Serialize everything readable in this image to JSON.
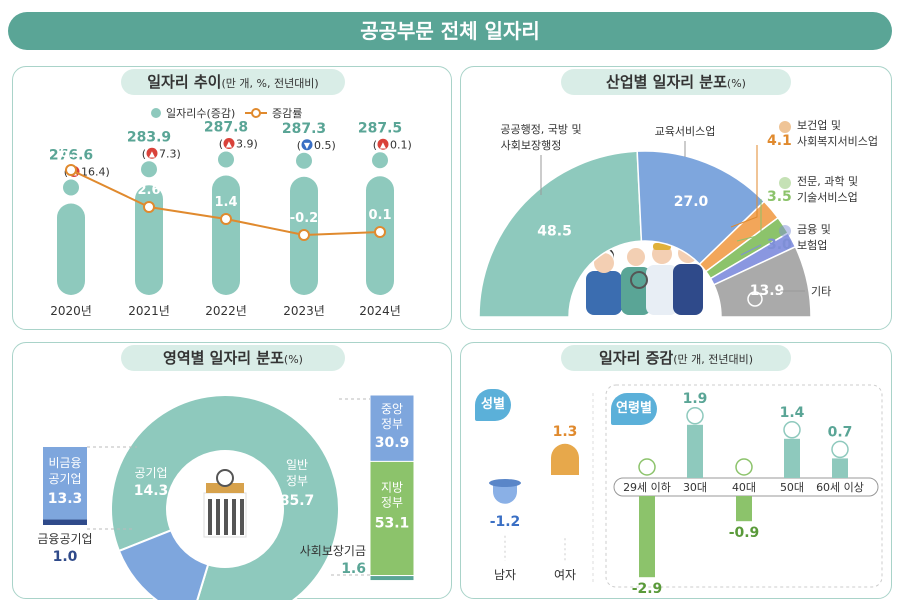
{
  "page_title": "공공부문 전체 일자리",
  "colors": {
    "teal": "#8ec9bd",
    "teal_dark": "#5aa596",
    "orange": "#e08a2e",
    "blue": "#7ea6dd",
    "green": "#8cc36b",
    "gray": "#aaaaaa",
    "navy": "#2f4a8a"
  },
  "panels": {
    "trend": {
      "title": "일자리 추이",
      "subtitle": "(만 개, %, 전년대비)",
      "legend_jobs": "일자리수(증감)",
      "legend_rate": "증감률"
    },
    "industry": {
      "title": "산업별 일자리 분포",
      "subtitle": "(%)"
    },
    "domain": {
      "title": "영역별 일자리 분포",
      "subtitle": "(%)"
    },
    "change": {
      "title": "일자리 증감",
      "subtitle": "(만 개, 전년대비)",
      "gender_label": "성별",
      "age_label": "연령별"
    }
  },
  "chart_data": [
    {
      "type": "line",
      "categories": [
        "2020년",
        "2021년",
        "2022년",
        "2023년",
        "2024년"
      ],
      "series": [
        {
          "name": "일자리수(증감)",
          "values": [
            276.6,
            283.9,
            287.8,
            287.3,
            287.5
          ],
          "change": [
            16.4,
            7.3,
            3.9,
            0.5,
            0.1
          ],
          "change_dir": [
            "up",
            "up",
            "up",
            "down",
            "up"
          ]
        },
        {
          "name": "증감률",
          "values": [
            6.3,
            2.6,
            1.4,
            -0.2,
            0.1
          ]
        }
      ]
    },
    {
      "type": "pie",
      "categories": [
        "공공행정, 국방 및 사회보장행정",
        "교육서비스업",
        "보건업 및 사회복지서비스업",
        "전문, 과학 및 기술서비스업",
        "금융 및 보험업",
        "기타"
      ],
      "values": [
        48.5,
        27.0,
        4.1,
        3.5,
        3.0,
        13.9
      ]
    },
    {
      "type": "pie",
      "categories": [
        "일반정부",
        "공기업"
      ],
      "values": [
        85.7,
        14.3
      ],
      "breakdown": {
        "government": {
          "categories": [
            "중앙정부",
            "지방정부",
            "사회보장기금"
          ],
          "values": [
            30.9,
            53.1,
            1.6
          ]
        },
        "enterprise": {
          "categories": [
            "비금융공기업",
            "금융공기업"
          ],
          "values": [
            13.3,
            1.0
          ]
        }
      }
    },
    {
      "type": "bar",
      "categories": [
        "남자",
        "여자"
      ],
      "values": [
        -1.2,
        1.3
      ]
    },
    {
      "type": "bar",
      "categories": [
        "29세 이하",
        "30대",
        "40대",
        "50대",
        "60세 이상"
      ],
      "values": [
        -2.9,
        1.9,
        -0.9,
        1.4,
        0.7
      ]
    }
  ]
}
